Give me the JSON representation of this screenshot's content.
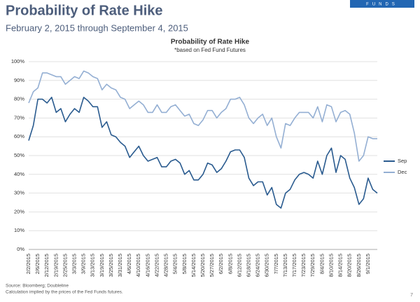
{
  "header": {
    "title": "Probability of Rate Hike",
    "subtitle": "February 2, 2015 through September 4, 2015",
    "brand": "FUNDS"
  },
  "footer": {
    "source": "Source: Bloomberg; Doubleline",
    "note": "Calculation implied by the prices of the Fed Funds futures.",
    "page": 7
  },
  "chart_data": {
    "type": "line",
    "title": "Probability of Rate Hike",
    "subtitle": "*based on Fed Fund Futures",
    "categories": [
      "2/2/2015",
      null,
      "2/6/2015",
      null,
      "2/12/2015",
      null,
      "2/19/2015",
      null,
      "2/25/2015",
      null,
      "3/3/2015",
      null,
      "3/9/2015",
      null,
      "3/13/2015",
      null,
      "3/19/2015",
      null,
      "3/25/2015",
      null,
      "3/31/2015",
      null,
      "4/6/2015",
      null,
      "4/10/2015",
      null,
      "4/16/2015",
      null,
      "4/22/2015",
      null,
      "4/28/2015",
      null,
      "5/4/2015",
      null,
      "5/8/2015",
      null,
      "5/14/2015",
      null,
      "5/20/2015",
      null,
      "5/27/2015",
      null,
      "6/2/2015",
      null,
      "6/8/2015",
      null,
      "6/12/2015",
      null,
      "6/18/2015",
      null,
      "6/24/2015",
      null,
      "6/30/2015",
      null,
      "7/7/2015",
      null,
      "7/13/2015",
      null,
      "7/17/2015",
      null,
      "7/23/2015",
      null,
      "7/29/2015",
      null,
      "8/4/2015",
      null,
      "8/10/2015",
      null,
      "8/14/2015",
      null,
      "8/20/2015",
      null,
      "8/26/2015",
      null,
      "9/1/2015",
      null,
      null
    ],
    "series": [
      {
        "name": "Sep",
        "color": "#2a5b8f",
        "values": [
          58,
          66,
          80,
          80,
          78,
          81,
          73,
          75,
          68,
          72,
          75,
          73,
          81,
          79,
          76,
          76,
          65,
          68,
          61,
          60,
          57,
          55,
          49,
          52,
          55,
          50,
          47,
          48,
          49,
          44,
          44,
          47,
          48,
          46,
          40,
          42,
          37,
          37,
          40,
          46,
          45,
          41,
          43,
          47,
          52,
          53,
          53,
          49,
          38,
          34,
          36,
          36,
          29,
          33,
          24,
          22,
          30,
          32,
          37,
          40,
          41,
          40,
          38,
          47,
          40,
          50,
          54,
          41,
          50,
          48,
          38,
          33,
          24,
          27,
          38,
          32,
          30
        ]
      },
      {
        "name": "Dec",
        "color": "#94afd3",
        "values": [
          78,
          84,
          86,
          94,
          94,
          93,
          92,
          92,
          88,
          90,
          92,
          91,
          95,
          94,
          92,
          91,
          85,
          88,
          86,
          85,
          81,
          80,
          75,
          77,
          79,
          77,
          73,
          73,
          77,
          73,
          73,
          76,
          77,
          74,
          71,
          72,
          67,
          66,
          69,
          74,
          74,
          70,
          73,
          75,
          80,
          80,
          81,
          77,
          70,
          67,
          70,
          72,
          66,
          70,
          60,
          54,
          67,
          66,
          70,
          73,
          73,
          73,
          70,
          76,
          68,
          77,
          76,
          68,
          73,
          74,
          72,
          62,
          47,
          50,
          60,
          59,
          59
        ]
      }
    ],
    "ylim": [
      0,
      100
    ],
    "yticks": [
      {
        "value": 0,
        "label": "0%"
      },
      {
        "value": 10,
        "label": "10%"
      },
      {
        "value": 20,
        "label": "20%"
      },
      {
        "value": 30,
        "label": "30%"
      },
      {
        "value": 40,
        "label": "40%"
      },
      {
        "value": 50,
        "label": "50%"
      },
      {
        "value": 60,
        "label": "60%"
      },
      {
        "value": 70,
        "label": "70%"
      },
      {
        "value": 80,
        "label": "80%"
      },
      {
        "value": 90,
        "label": "90%"
      },
      {
        "value": 100,
        "label": "100%"
      }
    ],
    "grid": true,
    "legend": "right"
  }
}
